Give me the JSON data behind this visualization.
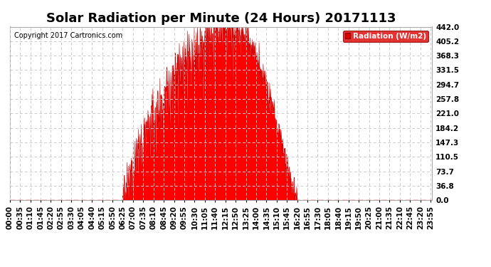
{
  "title": "Solar Radiation per Minute (24 Hours) 20171113",
  "copyright_text": "Copyright 2017 Cartronics.com",
  "ylabel": "Radiation (W/m2)",
  "yticks": [
    0.0,
    36.8,
    73.7,
    110.5,
    147.3,
    184.2,
    221.0,
    257.8,
    294.7,
    331.5,
    368.3,
    405.2,
    442.0
  ],
  "ymax": 442.0,
  "bg_color": "#ffffff",
  "plot_bg_color": "#ffffff",
  "fill_color": "#ff0000",
  "line_color": "#cc0000",
  "grid_color": "#cccccc",
  "dashed_line_color": "#ff0000",
  "legend_bg": "#dd0000",
  "legend_text_color": "#ffffff",
  "title_fontsize": 13,
  "tick_fontsize": 7.5,
  "copyright_fontsize": 7,
  "xtick_labels": [
    "00:00",
    "00:35",
    "01:10",
    "01:45",
    "02:20",
    "02:55",
    "03:30",
    "04:05",
    "04:40",
    "05:15",
    "05:50",
    "06:25",
    "07:00",
    "07:35",
    "08:10",
    "08:45",
    "09:20",
    "09:55",
    "10:30",
    "11:05",
    "11:40",
    "12:15",
    "12:50",
    "13:25",
    "14:00",
    "14:35",
    "15:10",
    "15:45",
    "16:20",
    "16:55",
    "17:30",
    "18:05",
    "18:40",
    "19:15",
    "19:50",
    "20:25",
    "21:00",
    "21:35",
    "22:10",
    "22:45",
    "23:20",
    "23:55"
  ],
  "sunrise_minute": 382,
  "sunset_minute": 980,
  "peak_minute": 760,
  "peak_value": 442.0,
  "seed": 123
}
